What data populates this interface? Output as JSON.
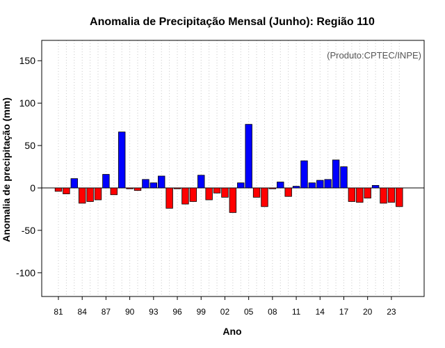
{
  "chart_data": {
    "type": "bar",
    "title": "Anomalia de Precipitação Mensal (Junho): Região 110",
    "xlabel": "Ano",
    "ylabel": "Anomalia de precipitação (mm)",
    "credit": "(Produto:CPTEC/INPE)",
    "ylim": [
      -128,
      174
    ],
    "yticks": [
      -100,
      -50,
      0,
      50,
      100,
      150
    ],
    "grid": "vertical-dotted",
    "categories": [
      "1981",
      "1982",
      "1983",
      "1984",
      "1985",
      "1986",
      "1987",
      "1988",
      "1989",
      "1990",
      "1991",
      "1992",
      "1993",
      "1994",
      "1995",
      "1996",
      "1997",
      "1998",
      "1999",
      "2000",
      "2001",
      "2002",
      "2003",
      "2004",
      "2005",
      "2006",
      "2007",
      "2008",
      "2009",
      "2010",
      "2011",
      "2012",
      "2013",
      "2014",
      "2015",
      "2016",
      "2017",
      "2018",
      "2019",
      "2020",
      "2021",
      "2022",
      "2023",
      "2024"
    ],
    "tick_labels": [
      "81",
      "84",
      "87",
      "90",
      "93",
      "96",
      "99",
      "02",
      "05",
      "08",
      "11",
      "14",
      "17",
      "20",
      "23"
    ],
    "tick_every": 3,
    "values": [
      -4,
      -7,
      11,
      -18,
      -16,
      -14,
      16,
      -8,
      66,
      -1,
      -3,
      10,
      6,
      14,
      -24,
      -1,
      -19,
      -16,
      15,
      -14,
      -6,
      -11,
      -29,
      6,
      75,
      -11,
      -22,
      -1,
      7,
      -10,
      2,
      32,
      6,
      9,
      10,
      33,
      25,
      -16,
      -17,
      -12,
      3,
      -18,
      -17,
      -22
    ],
    "positive_color": "#0000ff",
    "negative_color": "#ff0000"
  }
}
